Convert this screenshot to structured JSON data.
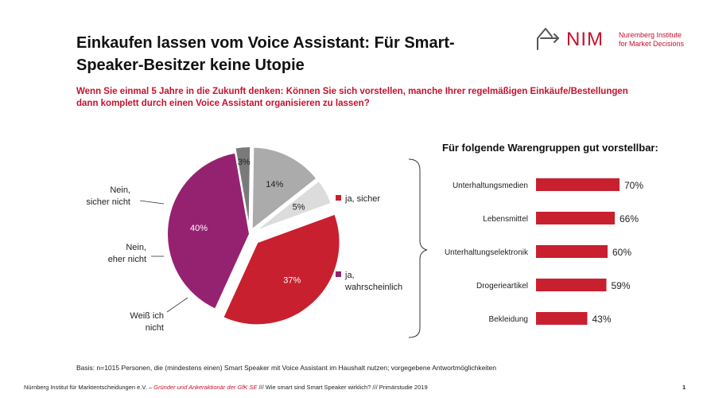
{
  "header": {
    "title": "Einkaufen lassen vom Voice Assistant: Für Smart-Speaker-Besitzer keine Utopie",
    "logo_text": "NIM",
    "logo_sub1": "Nuremberg Institute",
    "logo_sub2": "for Market Decisions"
  },
  "question": "Wenn Sie einmal 5 Jahre in die Zukunft denken: Können Sie sich vorstellen, manche Ihrer regelmäßigen Einkäufe/Bestellungen dann komplett durch einen Voice Assistant organisieren zu lassen?",
  "chart_data": [
    {
      "type": "pie",
      "title": "",
      "slices": [
        {
          "label": "ja, sicher",
          "label_lines": [
            "ja, sicher"
          ],
          "value": 37,
          "value_label": "37%",
          "color": "#c8202f"
        },
        {
          "label": "ja, wahrscheinlich",
          "label_lines": [
            "ja,",
            "wahrscheinlich"
          ],
          "value": 40,
          "value_label": "40%",
          "color": "#952270"
        },
        {
          "label": "Weiß ich nicht",
          "label_lines": [
            "Weiß ich",
            "nicht"
          ],
          "value": 3,
          "value_label": "3%",
          "color": "#7a7a7a"
        },
        {
          "label": "Nein, eher nicht",
          "label_lines": [
            "Nein,",
            "eher nicht"
          ],
          "value": 14,
          "value_label": "14%",
          "color": "#ababab"
        },
        {
          "label": "Nein, sicher nicht",
          "label_lines": [
            "Nein,",
            "sicher nicht"
          ],
          "value": 5,
          "value_label": "5%",
          "color": "#dcdcdc"
        }
      ]
    },
    {
      "type": "bar",
      "orientation": "horizontal",
      "title": "Für folgende Warengruppen gut vorstellbar:",
      "categories": [
        "Unterhaltungsmedien",
        "Lebensmittel",
        "Unterhaltungselektronik",
        "Drogerieartikel",
        "Bekleidung"
      ],
      "values": [
        70,
        66,
        60,
        59,
        43
      ],
      "value_labels": [
        "70%",
        "66%",
        "60%",
        "59%",
        "43%"
      ],
      "xlim": [
        0,
        100
      ],
      "color": "#c8202f"
    }
  ],
  "basis": "Basis: n=1015 Personen, die (mindestens einen) Smart Speaker mit Voice Assistant im Haushalt nutzen; vorgegebene Antwortmöglichkeiten",
  "footer": {
    "part1": "Nürnberg Institut für Marktentscheidungen e.V. – ",
    "part2": "Gründer und Ankeraktionär der GfK SE",
    "part3": " ///  Wie smart sind Smart Speaker wirklich? ///  Primärstudie 2019",
    "page": "1"
  },
  "colors": {
    "accent": "#c8102e",
    "purple": "#952270"
  }
}
